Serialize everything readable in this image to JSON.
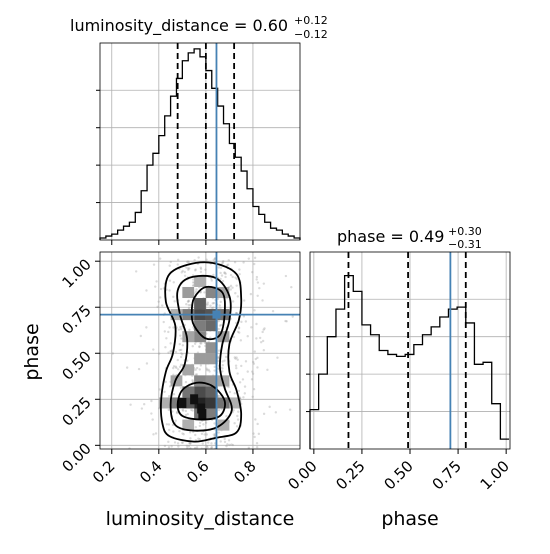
{
  "chart_data": [
    {
      "panel": "luminosity_distance marginal",
      "type": "histogram",
      "title_prefix": "luminosity_distance = 0.60",
      "title_plus": "+0.12",
      "title_minus": "−0.12",
      "x_range": [
        0.15,
        1.0
      ],
      "y_range": [
        0,
        1.0
      ],
      "bins_left": [
        0.15,
        0.175,
        0.2,
        0.225,
        0.25,
        0.275,
        0.3,
        0.325,
        0.35,
        0.375,
        0.4,
        0.425,
        0.45,
        0.475,
        0.5,
        0.525,
        0.55,
        0.575,
        0.6,
        0.625,
        0.65,
        0.675,
        0.7,
        0.725,
        0.75,
        0.775,
        0.8,
        0.825,
        0.85,
        0.875,
        0.9,
        0.925,
        0.95,
        0.975
      ],
      "bin_width": 0.025,
      "density": [
        0.01,
        0.02,
        0.03,
        0.05,
        0.07,
        0.09,
        0.14,
        0.25,
        0.38,
        0.44,
        0.53,
        0.63,
        0.73,
        0.82,
        0.91,
        0.95,
        0.97,
        0.93,
        0.86,
        0.77,
        0.68,
        0.59,
        0.49,
        0.42,
        0.35,
        0.26,
        0.17,
        0.13,
        0.09,
        0.06,
        0.05,
        0.03,
        0.02,
        0.01
      ],
      "quantiles": [
        0.48,
        0.6,
        0.72
      ],
      "truth": 0.645,
      "x_ticks": [
        0.2,
        0.4,
        0.6,
        0.8
      ],
      "x_tick_labels": [
        "0.2",
        "0.4",
        "0.6",
        "0.8"
      ]
    },
    {
      "panel": "phase marginal",
      "type": "histogram",
      "title_prefix": "phase = 0.49",
      "title_plus": "+0.30",
      "title_minus": "−0.31",
      "x_range": [
        -0.02,
        1.02
      ],
      "y_range": [
        0,
        1.0
      ],
      "bins_left": [
        -0.02,
        0.025,
        0.07,
        0.115,
        0.16,
        0.205,
        0.25,
        0.295,
        0.34,
        0.385,
        0.43,
        0.475,
        0.52,
        0.565,
        0.61,
        0.655,
        0.7,
        0.745,
        0.79,
        0.835,
        0.88,
        0.925,
        0.97
      ],
      "bin_width": 0.045,
      "density": [
        0.2,
        0.38,
        0.57,
        0.71,
        0.88,
        0.8,
        0.63,
        0.58,
        0.5,
        0.48,
        0.47,
        0.48,
        0.53,
        0.58,
        0.62,
        0.67,
        0.71,
        0.72,
        0.64,
        0.43,
        0.44,
        0.23,
        0.05
      ],
      "quantiles": [
        0.18,
        0.49,
        0.79
      ],
      "truth": 0.71,
      "x_ticks": [
        0.0,
        0.25,
        0.5,
        0.75,
        1.0
      ],
      "x_tick_labels": [
        "0.00",
        "0.25",
        "0.50",
        "0.75",
        "1.00"
      ],
      "xlabel": "phase"
    },
    {
      "panel": "2D luminosity_distance vs phase",
      "type": "contour",
      "x_range": [
        0.15,
        1.0
      ],
      "y_range": [
        -0.02,
        1.05
      ],
      "xlabel": "luminosity_distance",
      "ylabel": "phase",
      "x_ticks": [
        0.2,
        0.4,
        0.6,
        0.8
      ],
      "x_tick_labels": [
        "0.2",
        "0.4",
        "0.6",
        "0.8"
      ],
      "y_ticks": [
        0.0,
        0.25,
        0.5,
        0.75,
        1.0
      ],
      "y_tick_labels": [
        "0.00",
        "0.25",
        "0.50",
        "0.75",
        "1.00"
      ],
      "truth": {
        "x": 0.645,
        "y": 0.71
      },
      "density_cells": [
        {
          "x": 0.575,
          "y": 0.23,
          "v": 1.0
        },
        {
          "x": 0.625,
          "y": 0.23,
          "v": 0.9
        },
        {
          "x": 0.525,
          "y": 0.23,
          "v": 0.75
        },
        {
          "x": 0.575,
          "y": 0.29,
          "v": 0.8
        },
        {
          "x": 0.625,
          "y": 0.29,
          "v": 0.7
        },
        {
          "x": 0.525,
          "y": 0.29,
          "v": 0.6
        },
        {
          "x": 0.475,
          "y": 0.23,
          "v": 0.55
        },
        {
          "x": 0.675,
          "y": 0.23,
          "v": 0.6
        },
        {
          "x": 0.575,
          "y": 0.17,
          "v": 0.6
        },
        {
          "x": 0.625,
          "y": 0.17,
          "v": 0.55
        },
        {
          "x": 0.575,
          "y": 0.35,
          "v": 0.5
        },
        {
          "x": 0.625,
          "y": 0.35,
          "v": 0.45
        },
        {
          "x": 0.575,
          "y": 0.71,
          "v": 0.8
        },
        {
          "x": 0.625,
          "y": 0.71,
          "v": 0.75
        },
        {
          "x": 0.575,
          "y": 0.77,
          "v": 0.7
        },
        {
          "x": 0.625,
          "y": 0.65,
          "v": 0.65
        },
        {
          "x": 0.675,
          "y": 0.71,
          "v": 0.6
        },
        {
          "x": 0.525,
          "y": 0.71,
          "v": 0.55
        },
        {
          "x": 0.575,
          "y": 0.65,
          "v": 0.55
        },
        {
          "x": 0.625,
          "y": 0.83,
          "v": 0.5
        },
        {
          "x": 0.575,
          "y": 0.59,
          "v": 0.5
        },
        {
          "x": 0.625,
          "y": 0.53,
          "v": 0.45
        },
        {
          "x": 0.575,
          "y": 0.47,
          "v": 0.4
        },
        {
          "x": 0.625,
          "y": 0.47,
          "v": 0.4
        },
        {
          "x": 0.525,
          "y": 0.83,
          "v": 0.4
        },
        {
          "x": 0.675,
          "y": 0.59,
          "v": 0.4
        },
        {
          "x": 0.475,
          "y": 0.35,
          "v": 0.35
        },
        {
          "x": 0.675,
          "y": 0.35,
          "v": 0.35
        },
        {
          "x": 0.525,
          "y": 0.41,
          "v": 0.35
        },
        {
          "x": 0.675,
          "y": 0.83,
          "v": 0.35
        },
        {
          "x": 0.525,
          "y": 0.59,
          "v": 0.35
        },
        {
          "x": 0.475,
          "y": 0.71,
          "v": 0.3
        },
        {
          "x": 0.575,
          "y": 0.89,
          "v": 0.3
        },
        {
          "x": 0.525,
          "y": 0.11,
          "v": 0.3
        },
        {
          "x": 0.675,
          "y": 0.11,
          "v": 0.3
        },
        {
          "x": 0.425,
          "y": 0.23,
          "v": 0.3
        },
        {
          "x": 0.725,
          "y": 0.23,
          "v": 0.3
        }
      ],
      "contour_levels": [
        [
          [
            0.445,
            0.05
          ],
          [
            0.55,
            0.02
          ],
          [
            0.64,
            0.04
          ],
          [
            0.73,
            0.07
          ],
          [
            0.75,
            0.17
          ],
          [
            0.73,
            0.3
          ],
          [
            0.7,
            0.4
          ],
          [
            0.7,
            0.55
          ],
          [
            0.74,
            0.68
          ],
          [
            0.75,
            0.8
          ],
          [
            0.73,
            0.93
          ],
          [
            0.63,
            0.99
          ],
          [
            0.52,
            0.98
          ],
          [
            0.44,
            0.92
          ],
          [
            0.43,
            0.78
          ],
          [
            0.47,
            0.65
          ],
          [
            0.46,
            0.5
          ],
          [
            0.43,
            0.4
          ],
          [
            0.41,
            0.25
          ],
          [
            0.415,
            0.12
          ]
        ],
        [
          [
            0.47,
            0.11
          ],
          [
            0.55,
            0.08
          ],
          [
            0.65,
            0.1
          ],
          [
            0.71,
            0.19
          ],
          [
            0.68,
            0.31
          ],
          [
            0.66,
            0.42
          ],
          [
            0.67,
            0.55
          ],
          [
            0.7,
            0.68
          ],
          [
            0.7,
            0.81
          ],
          [
            0.64,
            0.91
          ],
          [
            0.53,
            0.91
          ],
          [
            0.48,
            0.84
          ],
          [
            0.49,
            0.71
          ],
          [
            0.52,
            0.58
          ],
          [
            0.51,
            0.44
          ],
          [
            0.47,
            0.35
          ],
          [
            0.45,
            0.22
          ]
        ],
        [
          [
            0.5,
            0.16
          ],
          [
            0.58,
            0.14
          ],
          [
            0.66,
            0.16
          ],
          [
            0.68,
            0.24
          ],
          [
            0.63,
            0.32
          ],
          [
            0.56,
            0.34
          ],
          [
            0.5,
            0.3
          ],
          [
            0.48,
            0.22
          ]
        ],
        [
          [
            0.55,
            0.65
          ],
          [
            0.6,
            0.58
          ],
          [
            0.66,
            0.6
          ],
          [
            0.68,
            0.72
          ],
          [
            0.67,
            0.83
          ],
          [
            0.6,
            0.86
          ],
          [
            0.55,
            0.8
          ],
          [
            0.54,
            0.72
          ]
        ]
      ],
      "dark_marks": [
        {
          "x": 0.58,
          "y": 0.2
        },
        {
          "x": 0.585,
          "y": 0.17
        },
        {
          "x": 0.5,
          "y": 0.23
        },
        {
          "x": 0.55,
          "y": 0.25
        }
      ],
      "scatter_count": 700
    }
  ],
  "colors": {
    "truth_line": "#4682b4",
    "hist_line": "#000000",
    "grid": "#b0b0b0"
  }
}
